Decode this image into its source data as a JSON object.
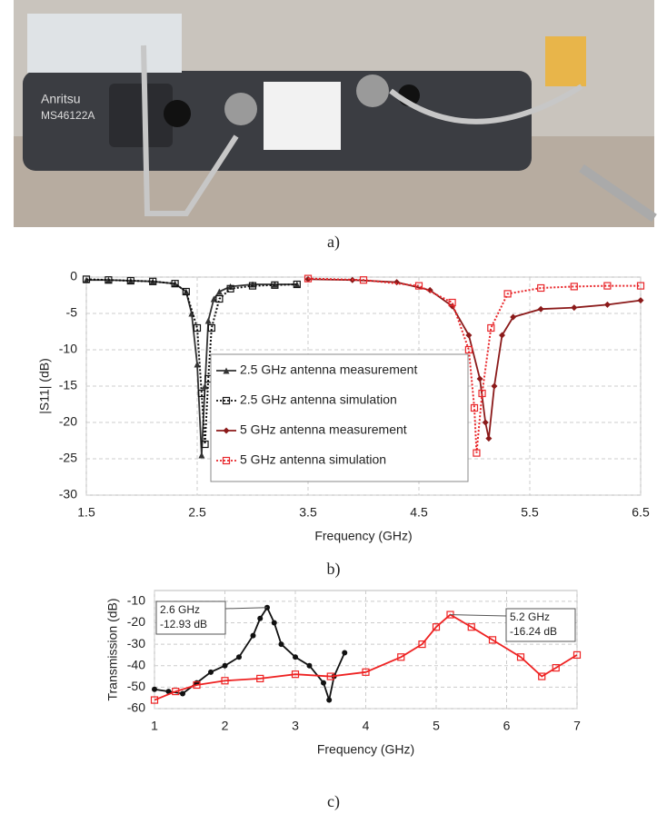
{
  "figure": {
    "captions": [
      "a)",
      "b)",
      "c)"
    ],
    "photo_labels": [
      "Anritsu",
      "MS46122A"
    ]
  },
  "chart_data": [
    {
      "type": "line",
      "xlabel": "Frequency (GHz)",
      "ylabel": "|S11| (dB)",
      "xlim": [
        1.5,
        6.5
      ],
      "xticks": [
        1.5,
        2.5,
        3.5,
        4.5,
        5.5,
        6.5
      ],
      "ylim": [
        -30,
        0
      ],
      "yticks": [
        0,
        -5,
        -10,
        -15,
        -20,
        -25,
        -30
      ],
      "grid": true,
      "series": [
        {
          "name": "2.5 GHz antenna measurement",
          "color": "#333333",
          "dash": "solid",
          "marker": "triangle",
          "x": [
            1.5,
            1.7,
            1.9,
            2.1,
            2.3,
            2.4,
            2.45,
            2.5,
            2.54,
            2.57,
            2.6,
            2.65,
            2.7,
            2.8,
            3.0,
            3.2,
            3.4
          ],
          "values": [
            -0.4,
            -0.4,
            -0.5,
            -0.6,
            -0.9,
            -2,
            -5,
            -12,
            -24.5,
            -15,
            -6,
            -3,
            -2,
            -1.3,
            -1,
            -1,
            -1
          ]
        },
        {
          "name": "2.5 GHz antenna simulation",
          "color": "#111111",
          "dash": "dotted",
          "marker": "square",
          "x": [
            1.5,
            1.7,
            1.9,
            2.1,
            2.3,
            2.4,
            2.5,
            2.54,
            2.57,
            2.6,
            2.63,
            2.7,
            2.8,
            3.0,
            3.2,
            3.4
          ],
          "values": [
            -0.3,
            -0.4,
            -0.5,
            -0.6,
            -0.9,
            -2,
            -7,
            -16,
            -23,
            -14,
            -7,
            -3,
            -1.6,
            -1.2,
            -1.1,
            -1
          ]
        },
        {
          "name": "5 GHz antenna measurement",
          "color": "#8b1a1a",
          "dash": "solid",
          "marker": "diamond",
          "x": [
            3.5,
            3.9,
            4.3,
            4.6,
            4.8,
            4.95,
            5.05,
            5.1,
            5.13,
            5.18,
            5.25,
            5.35,
            5.6,
            5.9,
            6.2,
            6.5
          ],
          "values": [
            -0.3,
            -0.4,
            -0.7,
            -1.8,
            -4,
            -8,
            -14,
            -20,
            -22.2,
            -15,
            -8,
            -5.5,
            -4.4,
            -4.2,
            -3.8,
            -3.2
          ]
        },
        {
          "name": "5 GHz antenna simulation",
          "color": "#e8262a",
          "dash": "dotted",
          "marker": "square",
          "x": [
            3.5,
            4.0,
            4.5,
            4.8,
            4.95,
            5.0,
            5.02,
            5.07,
            5.15,
            5.3,
            5.6,
            5.9,
            6.2,
            6.5
          ],
          "values": [
            -0.2,
            -0.4,
            -1.2,
            -3.5,
            -10,
            -18,
            -24.2,
            -16,
            -7,
            -2.3,
            -1.5,
            -1.3,
            -1.2,
            -1.2
          ]
        }
      ]
    },
    {
      "type": "line",
      "xlabel": "Frequency (GHz)",
      "ylabel": "Transmission (dB)",
      "xlim": [
        1,
        7
      ],
      "xticks": [
        1,
        2,
        3,
        4,
        5,
        6,
        7
      ],
      "ylim": [
        -60,
        -5
      ],
      "yticks": [
        -10,
        -20,
        -30,
        -40,
        -50,
        -60
      ],
      "grid": true,
      "series": [
        {
          "color": "#111111",
          "dash": "solid",
          "marker": "circle",
          "x": [
            1,
            1.2,
            1.4,
            1.6,
            1.8,
            2.0,
            2.2,
            2.4,
            2.5,
            2.6,
            2.7,
            2.8,
            3.0,
            3.2,
            3.4,
            3.48,
            3.55,
            3.7
          ],
          "values": [
            -51,
            -52,
            -53,
            -48,
            -43,
            -40,
            -36,
            -26,
            -18,
            -12.93,
            -20,
            -30,
            -36,
            -40,
            -48,
            -56,
            -45,
            -34
          ]
        },
        {
          "color": "#ee2222",
          "dash": "solid",
          "marker": "square",
          "x": [
            1,
            1.3,
            1.6,
            2,
            2.5,
            3,
            3.5,
            4,
            4.5,
            4.8,
            5.0,
            5.2,
            5.5,
            5.8,
            6.2,
            6.5,
            6.7,
            7
          ],
          "values": [
            -56,
            -52,
            -49,
            -47,
            -46,
            -44,
            -45,
            -43,
            -36,
            -30,
            -22,
            -16.24,
            -22,
            -28,
            -36,
            -45,
            -41,
            -35
          ]
        }
      ],
      "annotations": [
        {
          "text": [
            "2.6 GHz",
            "-12.93 dB"
          ],
          "x": 2.6,
          "y": -12.93
        },
        {
          "text": [
            "5.2 GHz",
            "-16.24 dB"
          ],
          "x": 5.2,
          "y": -16.24
        }
      ]
    }
  ]
}
